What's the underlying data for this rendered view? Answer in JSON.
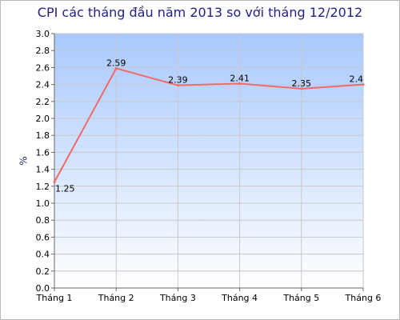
{
  "chart_data": {
    "type": "line",
    "title": "CPI các tháng đầu năm 2013 so với tháng 12/2012",
    "xlabel": "",
    "ylabel": "%",
    "categories": [
      "Tháng 1",
      "Tháng 2",
      "Tháng 3",
      "Tháng 4",
      "Tháng 5",
      "Tháng 6"
    ],
    "series": [
      {
        "values": [
          1.25,
          2.59,
          2.39,
          2.41,
          2.35,
          2.4
        ],
        "labels": [
          "1.25",
          "2.59",
          "2.39",
          "2.41",
          "2.35",
          "2.4"
        ],
        "color": "#f06a6a"
      }
    ],
    "ylim": [
      0,
      3.0
    ],
    "yticks": [
      "0.0",
      "0.2",
      "0.4",
      "0.6",
      "0.8",
      "1.0",
      "1.2",
      "1.4",
      "1.6",
      "1.8",
      "2.0",
      "2.2",
      "2.4",
      "2.6",
      "2.8",
      "3.0"
    ],
    "grid": true,
    "legend": "none",
    "colors": {
      "background_top": "#a9c9ff",
      "background_bottom": "#ffffff",
      "grid": "#c8c8c8",
      "title": "#1f1f8a"
    }
  }
}
